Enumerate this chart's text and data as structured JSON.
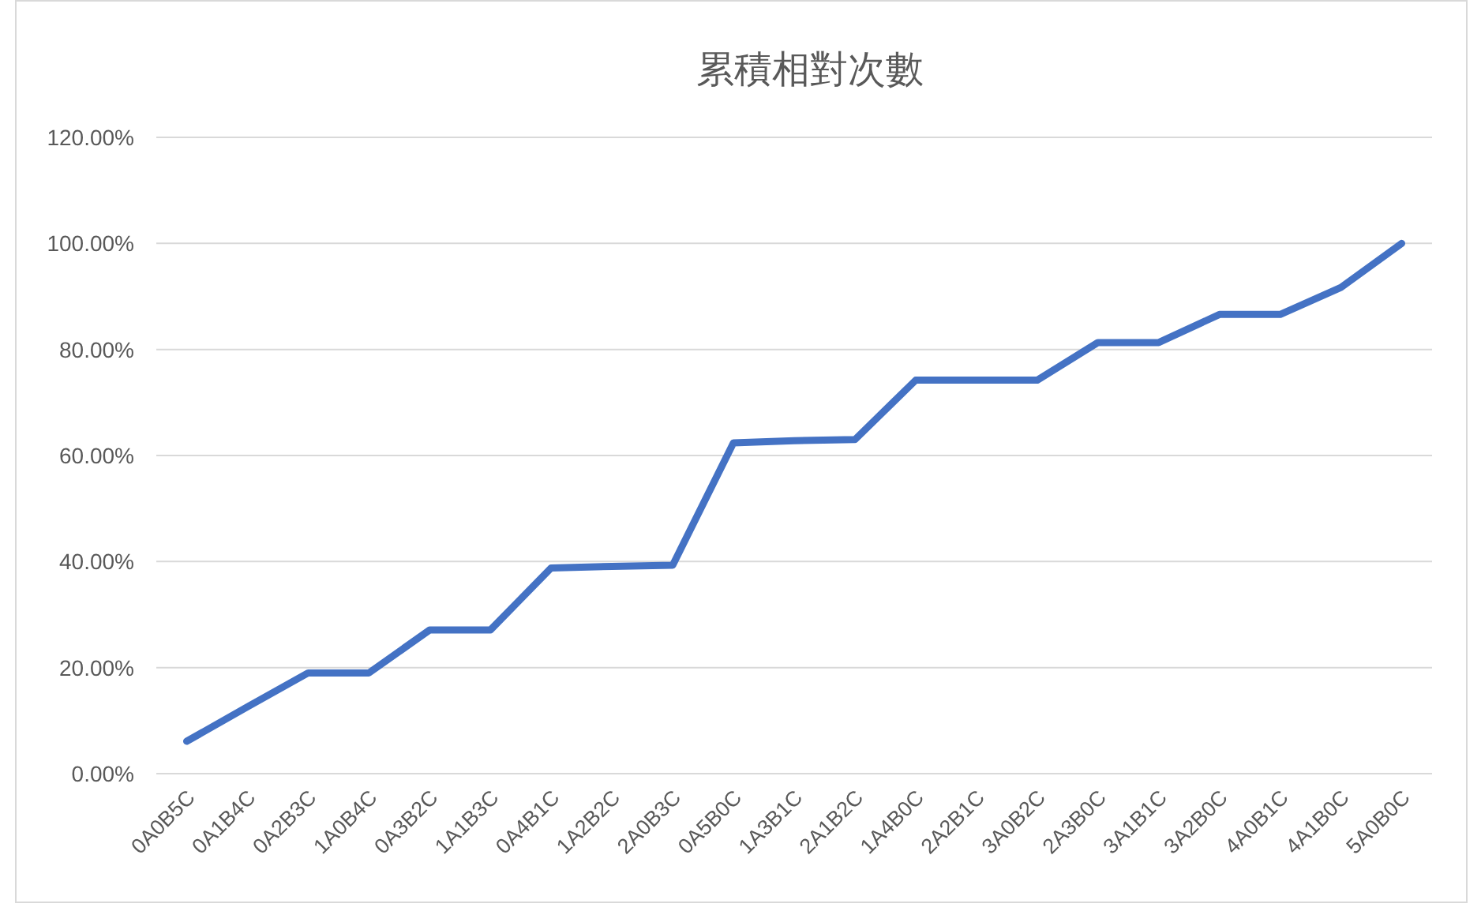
{
  "chart_data": {
    "type": "line",
    "title": "累積相對次數",
    "categories": [
      "0A0B5C",
      "0A1B4C",
      "0A2B3C",
      "1A0B4C",
      "0A3B2C",
      "1A1B3C",
      "0A4B1C",
      "1A2B2C",
      "2A0B3C",
      "0A5B0C",
      "1A3B1C",
      "2A1B2C",
      "1A4B0C",
      "2A2B1C",
      "3A0B2C",
      "2A3B0C",
      "3A1B1C",
      "3A2B0C",
      "4A0B1C",
      "4A1B0C",
      "5A0B0C"
    ],
    "series": [
      {
        "color": "#4472c4",
        "values": [
          6.1,
          12.6,
          19.0,
          19.0,
          27.1,
          27.1,
          38.8,
          39.1,
          39.3,
          62.4,
          62.8,
          63.0,
          74.2,
          74.2,
          74.2,
          81.3,
          81.3,
          86.6,
          86.6,
          91.7,
          100
        ]
      }
    ],
    "ylim": [
      0,
      120
    ],
    "yticks": [
      {
        "value": 0,
        "label": "0.00%"
      },
      {
        "value": 20,
        "label": "20.00%"
      },
      {
        "value": 40,
        "label": "40.00%"
      },
      {
        "value": 60,
        "label": "60.00%"
      },
      {
        "value": 80,
        "label": "80.00%"
      },
      {
        "value": 100,
        "label": "100.00%"
      },
      {
        "value": 120,
        "label": "120.00%"
      }
    ],
    "grid": "y",
    "marker": "none",
    "line_style": "solid"
  }
}
